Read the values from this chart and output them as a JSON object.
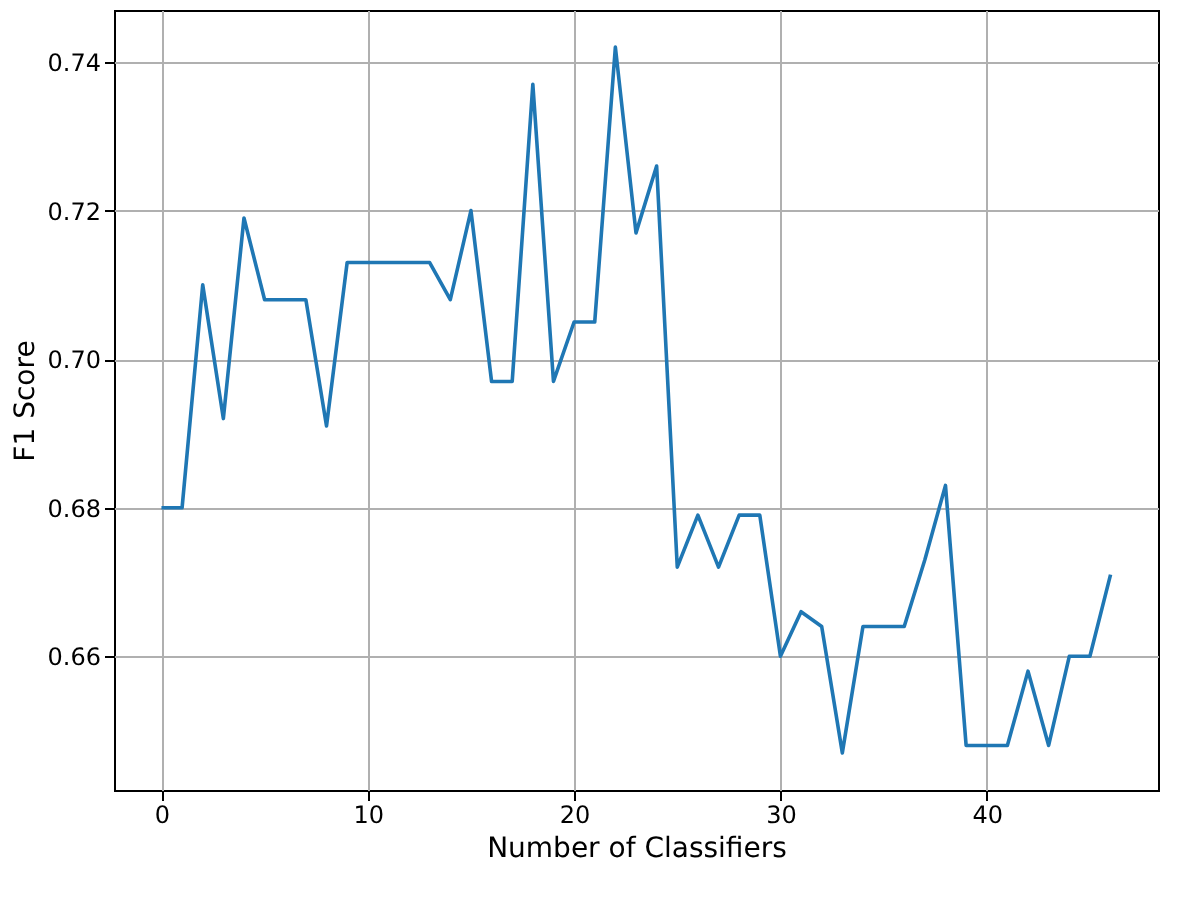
{
  "chart_data": {
    "type": "line",
    "xlabel": "Number of Classifiers",
    "ylabel": "F1 Score",
    "x": [
      0,
      1,
      2,
      3,
      4,
      5,
      6,
      7,
      8,
      9,
      10,
      11,
      12,
      13,
      14,
      15,
      16,
      17,
      18,
      19,
      20,
      21,
      22,
      23,
      24,
      25,
      26,
      27,
      28,
      29,
      30,
      31,
      32,
      33,
      34,
      35,
      36,
      37,
      38,
      39,
      40,
      41,
      42,
      43,
      44,
      45,
      46
    ],
    "series": [
      {
        "color": "#1f77b4",
        "values": [
          0.68,
          0.68,
          0.71,
          0.692,
          0.719,
          0.708,
          0.708,
          0.708,
          0.691,
          0.713,
          0.713,
          0.713,
          0.713,
          0.713,
          0.708,
          0.72,
          0.697,
          0.697,
          0.737,
          0.697,
          0.705,
          0.705,
          0.742,
          0.717,
          0.726,
          0.672,
          0.679,
          0.672,
          0.679,
          0.679,
          0.66,
          0.666,
          0.664,
          0.647,
          0.664,
          0.664,
          0.664,
          0.673,
          0.683,
          0.648,
          0.648,
          0.648,
          0.658,
          0.648,
          0.66,
          0.66,
          0.671
        ]
      }
    ],
    "xlim": [
      -2.3,
      48.3
    ],
    "ylim": [
      0.642,
      0.747
    ],
    "xticks": [
      0,
      10,
      20,
      30,
      40
    ],
    "yticks": [
      {
        "value": 0.66,
        "label": "0.66"
      },
      {
        "value": 0.68,
        "label": "0.68"
      },
      {
        "value": 0.7,
        "label": "0.70"
      },
      {
        "value": 0.72,
        "label": "0.72"
      },
      {
        "value": 0.74,
        "label": "0.74"
      }
    ],
    "grid": true,
    "line_style": "solid",
    "marker": "none"
  }
}
